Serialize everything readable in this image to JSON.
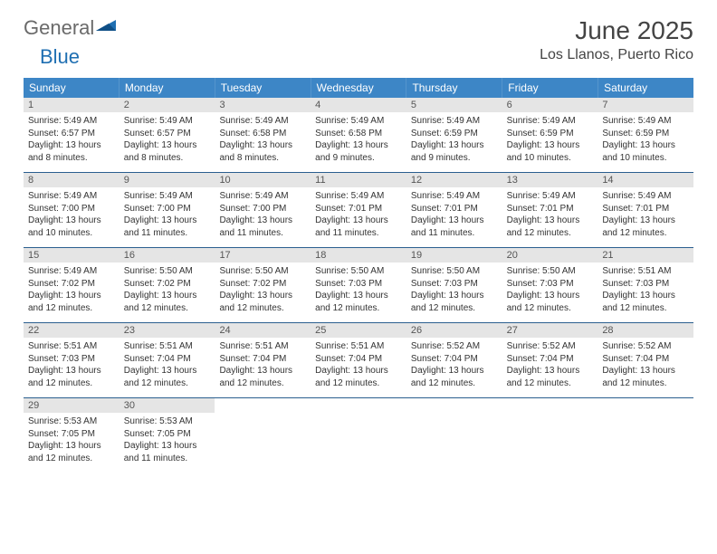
{
  "logo": {
    "word1": "General",
    "word2": "Blue"
  },
  "title": "June 2025",
  "location": "Los Llanos, Puerto Rico",
  "colors": {
    "header_bg": "#3d86c6",
    "header_fg": "#ffffff",
    "daynum_bg": "#e5e5e5",
    "week_divider": "#2b5f8f",
    "text": "#333333",
    "title_color": "#444444",
    "logo_gray": "#6a6a6a",
    "logo_blue": "#1f6fb2"
  },
  "dow": [
    "Sunday",
    "Monday",
    "Tuesday",
    "Wednesday",
    "Thursday",
    "Friday",
    "Saturday"
  ],
  "days": [
    {
      "n": 1,
      "sr": "5:49 AM",
      "ss": "6:57 PM",
      "dl": "13 hours and 8 minutes."
    },
    {
      "n": 2,
      "sr": "5:49 AM",
      "ss": "6:57 PM",
      "dl": "13 hours and 8 minutes."
    },
    {
      "n": 3,
      "sr": "5:49 AM",
      "ss": "6:58 PM",
      "dl": "13 hours and 8 minutes."
    },
    {
      "n": 4,
      "sr": "5:49 AM",
      "ss": "6:58 PM",
      "dl": "13 hours and 9 minutes."
    },
    {
      "n": 5,
      "sr": "5:49 AM",
      "ss": "6:59 PM",
      "dl": "13 hours and 9 minutes."
    },
    {
      "n": 6,
      "sr": "5:49 AM",
      "ss": "6:59 PM",
      "dl": "13 hours and 10 minutes."
    },
    {
      "n": 7,
      "sr": "5:49 AM",
      "ss": "6:59 PM",
      "dl": "13 hours and 10 minutes."
    },
    {
      "n": 8,
      "sr": "5:49 AM",
      "ss": "7:00 PM",
      "dl": "13 hours and 10 minutes."
    },
    {
      "n": 9,
      "sr": "5:49 AM",
      "ss": "7:00 PM",
      "dl": "13 hours and 11 minutes."
    },
    {
      "n": 10,
      "sr": "5:49 AM",
      "ss": "7:00 PM",
      "dl": "13 hours and 11 minutes."
    },
    {
      "n": 11,
      "sr": "5:49 AM",
      "ss": "7:01 PM",
      "dl": "13 hours and 11 minutes."
    },
    {
      "n": 12,
      "sr": "5:49 AM",
      "ss": "7:01 PM",
      "dl": "13 hours and 11 minutes."
    },
    {
      "n": 13,
      "sr": "5:49 AM",
      "ss": "7:01 PM",
      "dl": "13 hours and 12 minutes."
    },
    {
      "n": 14,
      "sr": "5:49 AM",
      "ss": "7:01 PM",
      "dl": "13 hours and 12 minutes."
    },
    {
      "n": 15,
      "sr": "5:49 AM",
      "ss": "7:02 PM",
      "dl": "13 hours and 12 minutes."
    },
    {
      "n": 16,
      "sr": "5:50 AM",
      "ss": "7:02 PM",
      "dl": "13 hours and 12 minutes."
    },
    {
      "n": 17,
      "sr": "5:50 AM",
      "ss": "7:02 PM",
      "dl": "13 hours and 12 minutes."
    },
    {
      "n": 18,
      "sr": "5:50 AM",
      "ss": "7:03 PM",
      "dl": "13 hours and 12 minutes."
    },
    {
      "n": 19,
      "sr": "5:50 AM",
      "ss": "7:03 PM",
      "dl": "13 hours and 12 minutes."
    },
    {
      "n": 20,
      "sr": "5:50 AM",
      "ss": "7:03 PM",
      "dl": "13 hours and 12 minutes."
    },
    {
      "n": 21,
      "sr": "5:51 AM",
      "ss": "7:03 PM",
      "dl": "13 hours and 12 minutes."
    },
    {
      "n": 22,
      "sr": "5:51 AM",
      "ss": "7:03 PM",
      "dl": "13 hours and 12 minutes."
    },
    {
      "n": 23,
      "sr": "5:51 AM",
      "ss": "7:04 PM",
      "dl": "13 hours and 12 minutes."
    },
    {
      "n": 24,
      "sr": "5:51 AM",
      "ss": "7:04 PM",
      "dl": "13 hours and 12 minutes."
    },
    {
      "n": 25,
      "sr": "5:51 AM",
      "ss": "7:04 PM",
      "dl": "13 hours and 12 minutes."
    },
    {
      "n": 26,
      "sr": "5:52 AM",
      "ss": "7:04 PM",
      "dl": "13 hours and 12 minutes."
    },
    {
      "n": 27,
      "sr": "5:52 AM",
      "ss": "7:04 PM",
      "dl": "13 hours and 12 minutes."
    },
    {
      "n": 28,
      "sr": "5:52 AM",
      "ss": "7:04 PM",
      "dl": "13 hours and 12 minutes."
    },
    {
      "n": 29,
      "sr": "5:53 AM",
      "ss": "7:05 PM",
      "dl": "13 hours and 12 minutes."
    },
    {
      "n": 30,
      "sr": "5:53 AM",
      "ss": "7:05 PM",
      "dl": "13 hours and 11 minutes."
    }
  ],
  "labels": {
    "sunrise": "Sunrise:",
    "sunset": "Sunset:",
    "daylight": "Daylight:"
  },
  "layout": {
    "first_weekday_offset": 0,
    "trailing_empty": 5
  }
}
